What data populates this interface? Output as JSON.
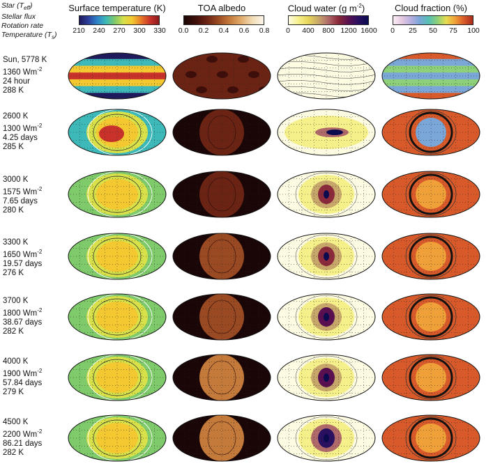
{
  "key_labels": {
    "star": "Star (T",
    "star_sub": "eff",
    "star_end": ")",
    "flux": "Stellar flux",
    "rotation": "Rotation rate",
    "temp": "Temperature (T",
    "temp_sub": "s",
    "temp_end": ")"
  },
  "columns": [
    {
      "title": "Surface temperature (K)",
      "ticks": [
        "210",
        "240",
        "270",
        "300",
        "330"
      ],
      "colors": [
        "#1f1a5c",
        "#2c3f9a",
        "#2e82c8",
        "#3cb9b8",
        "#7fca6a",
        "#d8e04a",
        "#f3c830",
        "#e8782a",
        "#c8322a",
        "#8a1a1c"
      ]
    },
    {
      "title": "TOA albedo",
      "ticks": [
        "0.0",
        "0.2",
        "0.4",
        "0.6",
        "0.8"
      ],
      "colors": [
        "#1a0606",
        "#3e0e0a",
        "#6b2414",
        "#9a4a22",
        "#c47a3a",
        "#e0aa6a",
        "#f2dcb4",
        "#fbf6ec"
      ]
    },
    {
      "title": "Cloud water (g m",
      "title_sup": "-2",
      "title_end": ")",
      "ticks": [
        "0",
        "400",
        "800",
        "1200",
        "1600"
      ],
      "colors": [
        "#fdfbe2",
        "#f6f08a",
        "#e6d45a",
        "#c8a86a",
        "#b06a6a",
        "#8a2a3a",
        "#5a1050",
        "#2a1060",
        "#0a0a50"
      ]
    },
    {
      "title": "Cloud fraction (%)",
      "ticks": [
        "0",
        "25",
        "50",
        "75",
        "100"
      ],
      "colors": [
        "#fbeef6",
        "#e4c8e0",
        "#b8aee0",
        "#7aa6d8",
        "#56c0b4",
        "#8ed07a",
        "#e6dc50",
        "#f0a038",
        "#d85a2a",
        "#a82a1c"
      ]
    }
  ],
  "rows": [
    {
      "star": "Sun, 5778 K",
      "flux": "1360 Wm",
      "flux_sup": "-2",
      "rotation": "24 hour",
      "temp": "288 K"
    },
    {
      "star": "2600 K",
      "flux": "1300 Wm",
      "flux_sup": "-2",
      "rotation": "4.25 days",
      "temp": "285 K"
    },
    {
      "star": "3000 K",
      "flux": "1575 Wm",
      "flux_sup": "-2",
      "rotation": "7.65 days",
      "temp": "280 K"
    },
    {
      "star": "3300 K",
      "flux": "1650 Wm",
      "flux_sup": "-2",
      "rotation": "19.57 days",
      "temp": "276 K"
    },
    {
      "star": "3700 K",
      "flux": "1800 Wm",
      "flux_sup": "-2",
      "rotation": "38.67 days",
      "temp": "282 K"
    },
    {
      "star": "4000 K",
      "flux": "1900 Wm",
      "flux_sup": "-2",
      "rotation": "57.84 days",
      "temp": "279 K"
    },
    {
      "star": "4500 K",
      "flux": "2200 Wm",
      "flux_sup": "-2",
      "rotation": "86.21 days",
      "temp": "282 K"
    }
  ]
}
